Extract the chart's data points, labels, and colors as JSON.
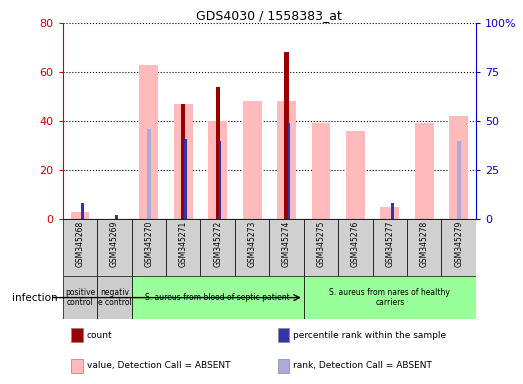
{
  "title": "GDS4030 / 1558383_at",
  "samples": [
    "GSM345268",
    "GSM345269",
    "GSM345270",
    "GSM345271",
    "GSM345272",
    "GSM345273",
    "GSM345274",
    "GSM345275",
    "GSM345276",
    "GSM345277",
    "GSM345278",
    "GSM345279"
  ],
  "count_values": [
    0,
    0,
    0,
    47,
    54,
    0,
    68,
    0,
    0,
    0,
    0,
    0
  ],
  "rank_values": [
    8,
    2,
    0,
    41,
    40,
    0,
    49,
    0,
    0,
    8,
    0,
    0
  ],
  "value_absent": [
    3,
    0,
    63,
    47,
    40,
    48,
    48,
    39,
    36,
    5,
    39,
    42
  ],
  "rank_absent": [
    0,
    0,
    46,
    0,
    0,
    0,
    0,
    0,
    0,
    0,
    0,
    40
  ],
  "groups": [
    {
      "label": "positive\ncontrol",
      "color": "#cccccc",
      "start": 0,
      "end": 1
    },
    {
      "label": "negativ\ne control",
      "color": "#cccccc",
      "start": 1,
      "end": 2
    },
    {
      "label": "S. aureus from blood of septic patient",
      "color": "#99ff99",
      "start": 2,
      "end": 7
    },
    {
      "label": "S. aureus from nares of healthy\ncarriers",
      "color": "#99ff99",
      "start": 7,
      "end": 12
    }
  ],
  "color_count": "#990000",
  "color_rank": "#3333aa",
  "color_value_absent": "#ffbbbb",
  "color_rank_absent": "#aaaadd",
  "ylim_left": [
    0,
    80
  ],
  "ylim_right": [
    0,
    100
  ],
  "yticks_left": [
    0,
    20,
    40,
    60,
    80
  ],
  "yticks_right": [
    0,
    25,
    50,
    75,
    100
  ],
  "ylabel_left_color": "#cc0000",
  "ylabel_right_color": "#0000cc",
  "infection_label": "infection",
  "legend_items": [
    {
      "label": "count",
      "color": "#990000"
    },
    {
      "label": "percentile rank within the sample",
      "color": "#3333aa"
    },
    {
      "label": "value, Detection Call = ABSENT",
      "color": "#ffbbbb"
    },
    {
      "label": "rank, Detection Call = ABSENT",
      "color": "#aaaadd"
    }
  ]
}
